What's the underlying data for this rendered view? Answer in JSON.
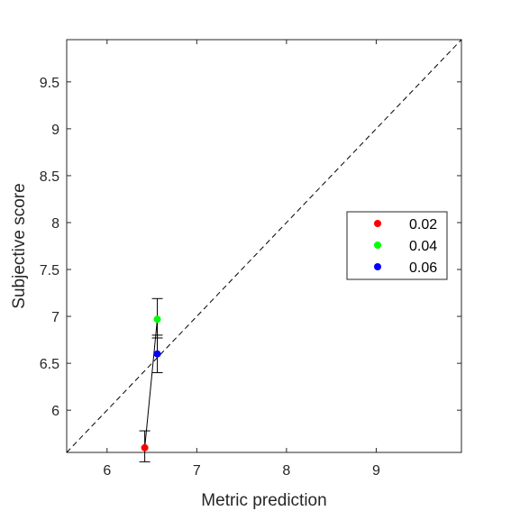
{
  "chart_data": {
    "type": "scatter",
    "xlabel": "Metric prediction",
    "ylabel": "Subjective score",
    "xlim": [
      5.55,
      9.95
    ],
    "ylim": [
      5.55,
      9.95
    ],
    "x_ticks": [
      6,
      7,
      8,
      9
    ],
    "x_tick_labels": [
      "6",
      "7",
      "8",
      "9"
    ],
    "y_ticks": [
      6,
      6.5,
      7,
      7.5,
      8,
      8.5,
      9,
      9.5
    ],
    "y_tick_labels": [
      "6",
      "6.5",
      "7",
      "7.5",
      "8",
      "8.5",
      "9",
      "9.5"
    ],
    "grid": false,
    "legend_position": "right",
    "reference_line": {
      "style": "dashed",
      "from": [
        5.55,
        5.55
      ],
      "to": [
        9.95,
        9.95
      ]
    },
    "connecting_line": true,
    "series": [
      {
        "name": "0.02",
        "x": 6.42,
        "y": 5.6,
        "y_err_low": 5.45,
        "y_err_high": 5.78,
        "color": "#ff0000"
      },
      {
        "name": "0.04",
        "x": 6.56,
        "y": 6.97,
        "y_err_low": 6.77,
        "y_err_high": 7.19,
        "color": "#00ff00"
      },
      {
        "name": "0.06",
        "x": 6.56,
        "y": 6.6,
        "y_err_low": 6.4,
        "y_err_high": 6.8,
        "color": "#0000ff"
      }
    ]
  }
}
